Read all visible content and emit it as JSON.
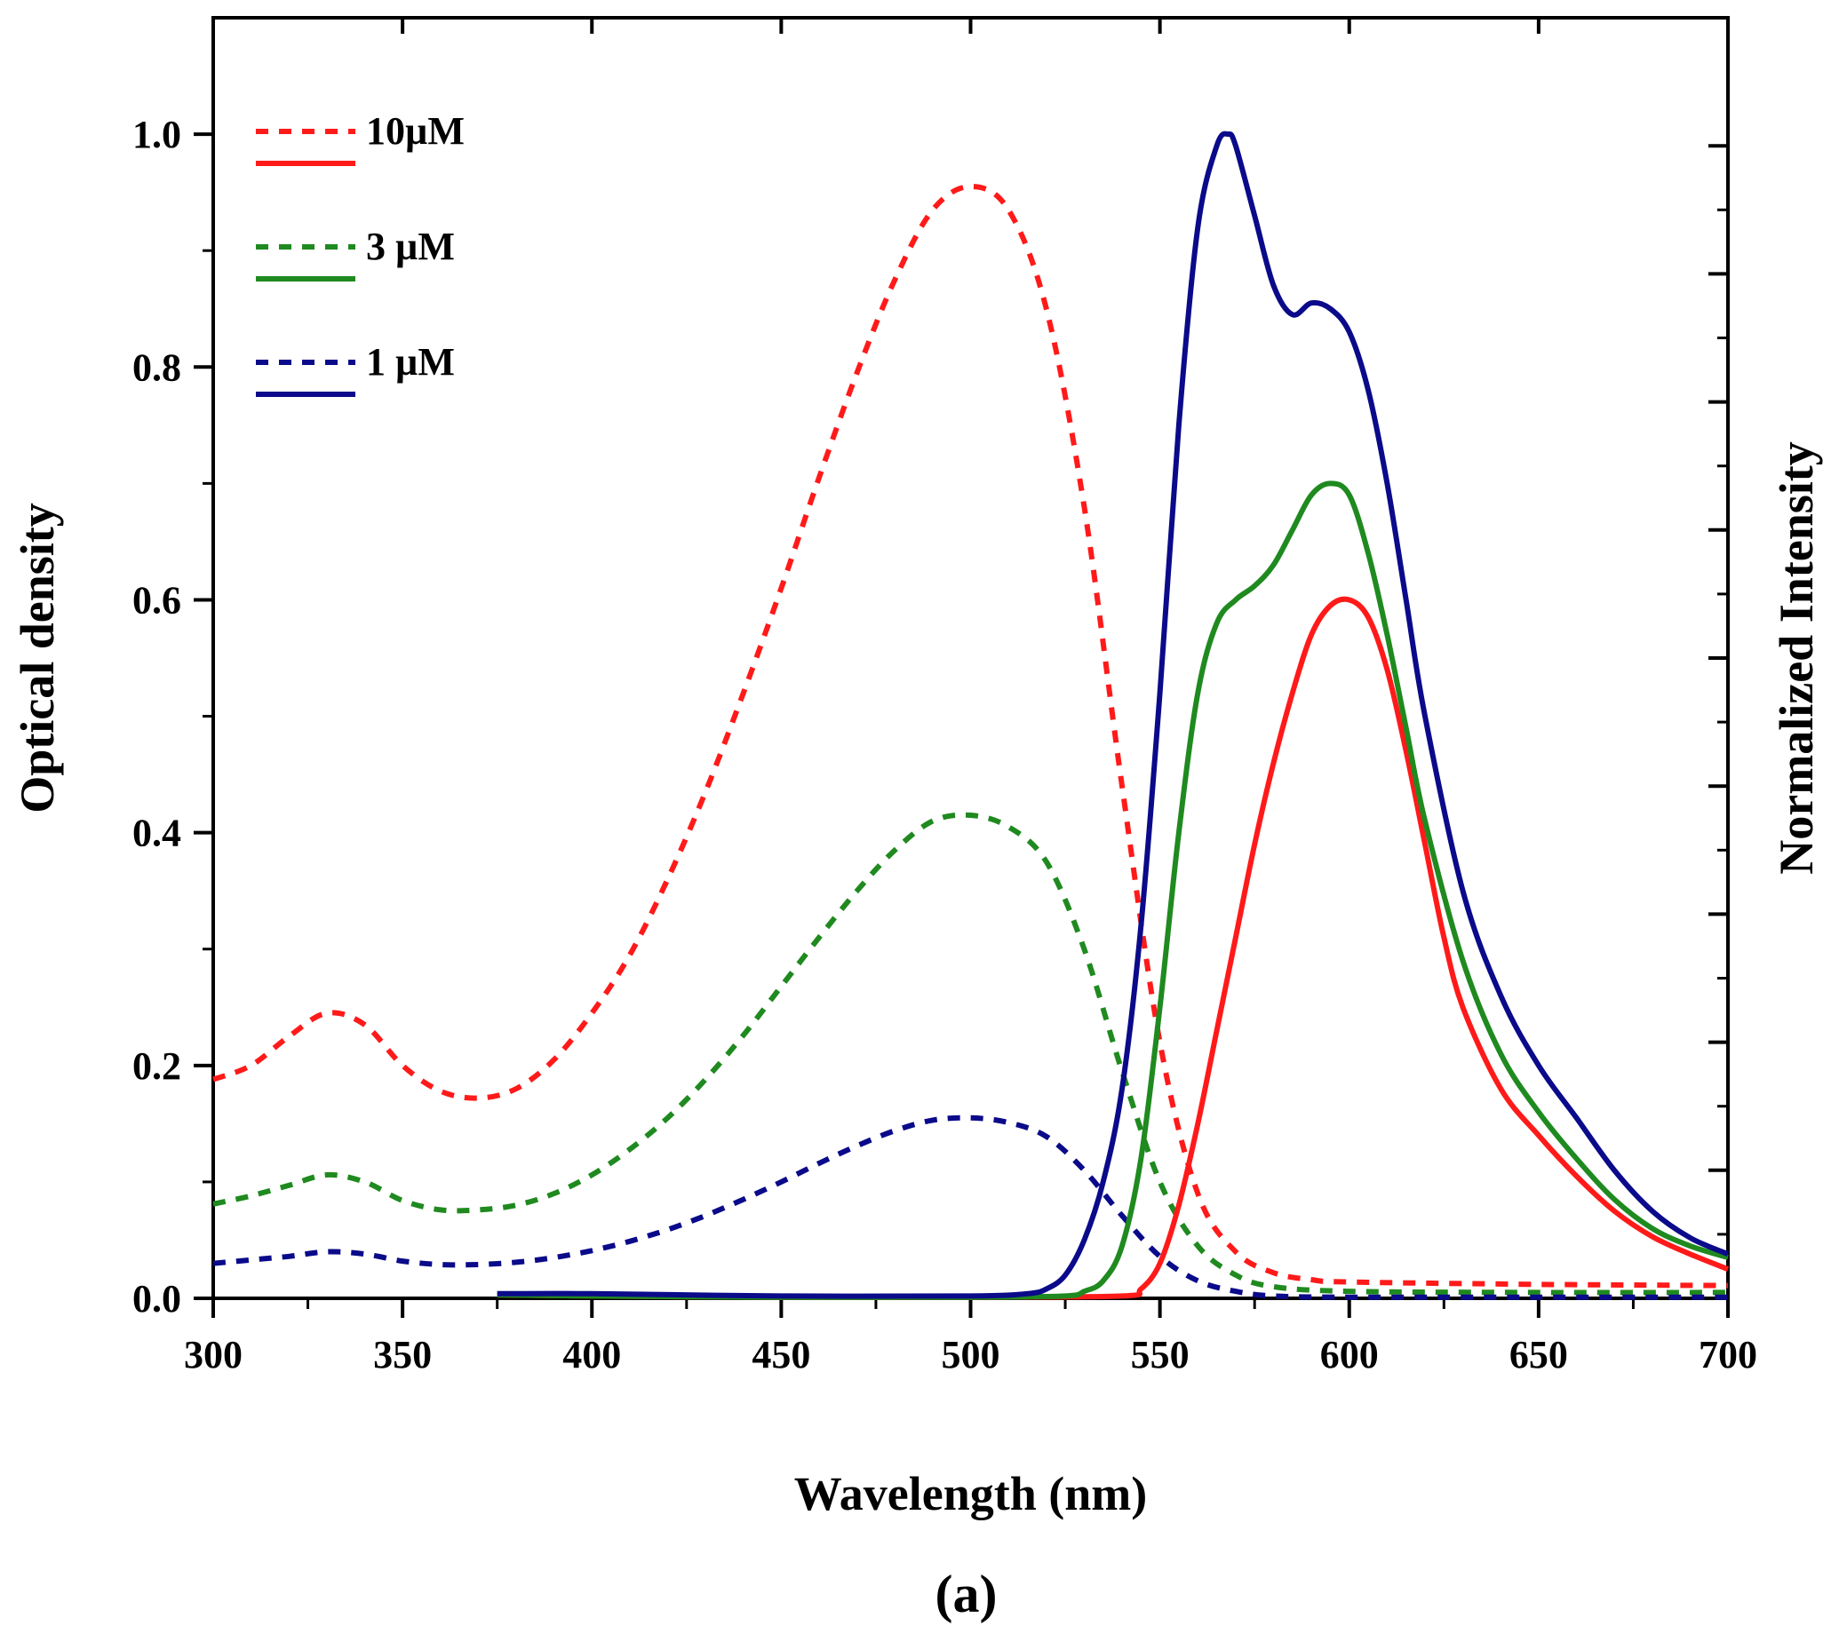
{
  "chart_data": {
    "type": "line",
    "title": "",
    "caption": "(a)",
    "xlabel": "Wavelength (nm)",
    "ylabel": "Optical density",
    "y2label": "Normalized Intensity",
    "xlim": [
      300,
      700
    ],
    "ylim": [
      0.0,
      1.1
    ],
    "x_ticks": [
      300,
      350,
      400,
      450,
      500,
      550,
      600,
      650,
      700
    ],
    "x_tick_labels": [
      "300",
      "350",
      "400",
      "450",
      "500",
      "550",
      "600",
      "650",
      "700"
    ],
    "y_ticks": [
      0.0,
      0.2,
      0.4,
      0.6,
      0.8,
      1.0
    ],
    "y_tick_labels": [
      "0.0",
      "0.2",
      "0.4",
      "0.6",
      "0.8",
      "1.0"
    ],
    "grid": false,
    "legend_position": "top-left",
    "legend": [
      {
        "label": "10µM",
        "color": "#ff1a1a"
      },
      {
        "label": "3 µM",
        "color": "#1f8a1f"
      },
      {
        "label": "1 µM",
        "color": "#0a0a8a"
      }
    ],
    "series": [
      {
        "name": "10µM absorption",
        "kind": "absorption",
        "style": "dashed",
        "color": "#ff1a1a",
        "x": [
          300,
          310,
          320,
          330,
          340,
          350,
          360,
          370,
          380,
          390,
          400,
          410,
          420,
          430,
          440,
          450,
          460,
          470,
          480,
          490,
          500,
          510,
          520,
          530,
          540,
          550,
          560,
          570,
          580,
          590,
          600,
          650,
          700
        ],
        "y": [
          0.188,
          0.2,
          0.225,
          0.245,
          0.235,
          0.2,
          0.178,
          0.172,
          0.18,
          0.205,
          0.245,
          0.295,
          0.36,
          0.435,
          0.52,
          0.61,
          0.705,
          0.795,
          0.875,
          0.935,
          0.955,
          0.935,
          0.85,
          0.68,
          0.44,
          0.22,
          0.09,
          0.04,
          0.022,
          0.016,
          0.014,
          0.012,
          0.011
        ]
      },
      {
        "name": "3 µM absorption",
        "kind": "absorption",
        "style": "dashed",
        "color": "#1f8a1f",
        "x": [
          300,
          310,
          320,
          330,
          340,
          350,
          360,
          370,
          380,
          390,
          400,
          410,
          420,
          430,
          440,
          450,
          460,
          470,
          480,
          490,
          500,
          510,
          520,
          530,
          540,
          550,
          560,
          570,
          580,
          600,
          650,
          700
        ],
        "y": [
          0.081,
          0.088,
          0.097,
          0.106,
          0.1,
          0.084,
          0.076,
          0.076,
          0.08,
          0.09,
          0.106,
          0.128,
          0.155,
          0.188,
          0.226,
          0.268,
          0.31,
          0.35,
          0.385,
          0.41,
          0.415,
          0.405,
          0.375,
          0.3,
          0.195,
          0.1,
          0.045,
          0.02,
          0.01,
          0.006,
          0.005,
          0.005
        ]
      },
      {
        "name": "1 µM absorption",
        "kind": "absorption",
        "style": "dashed",
        "color": "#0a0a8a",
        "x": [
          300,
          310,
          320,
          330,
          340,
          350,
          360,
          370,
          380,
          390,
          400,
          410,
          420,
          430,
          440,
          450,
          460,
          470,
          480,
          490,
          500,
          510,
          520,
          530,
          540,
          550,
          560,
          570,
          580,
          600,
          650,
          700
        ],
        "y": [
          0.03,
          0.033,
          0.036,
          0.04,
          0.038,
          0.032,
          0.029,
          0.029,
          0.031,
          0.035,
          0.041,
          0.049,
          0.059,
          0.071,
          0.085,
          0.1,
          0.116,
          0.131,
          0.144,
          0.153,
          0.155,
          0.151,
          0.139,
          0.11,
          0.071,
          0.036,
          0.015,
          0.006,
          0.002,
          0.001,
          0.001,
          0.001
        ]
      },
      {
        "name": "10µM emission",
        "kind": "emission",
        "style": "solid",
        "color": "#ff1a1a",
        "x": [
          375,
          400,
          450,
          500,
          540,
          545,
          550,
          555,
          560,
          565,
          570,
          575,
          580,
          585,
          590,
          595,
          600,
          605,
          610,
          615,
          620,
          625,
          630,
          640,
          650,
          660,
          670,
          680,
          690,
          700
        ],
        "y": [
          0.003,
          0.002,
          0.001,
          0.001,
          0.002,
          0.008,
          0.03,
          0.08,
          0.15,
          0.23,
          0.31,
          0.39,
          0.46,
          0.52,
          0.57,
          0.595,
          0.6,
          0.585,
          0.54,
          0.47,
          0.39,
          0.31,
          0.25,
          0.18,
          0.14,
          0.105,
          0.075,
          0.053,
          0.038,
          0.025
        ]
      },
      {
        "name": "3 µM emission",
        "kind": "emission",
        "style": "solid",
        "color": "#1f8a1f",
        "x": [
          375,
          400,
          450,
          500,
          525,
          530,
          535,
          540,
          545,
          550,
          555,
          560,
          565,
          570,
          575,
          580,
          585,
          590,
          595,
          600,
          605,
          610,
          615,
          620,
          630,
          640,
          650,
          660,
          670,
          680,
          690,
          700
        ],
        "y": [
          0.003,
          0.002,
          0.001,
          0.001,
          0.002,
          0.006,
          0.015,
          0.045,
          0.12,
          0.25,
          0.4,
          0.52,
          0.58,
          0.6,
          0.612,
          0.63,
          0.66,
          0.69,
          0.7,
          0.69,
          0.64,
          0.57,
          0.49,
          0.41,
          0.29,
          0.21,
          0.16,
          0.12,
          0.085,
          0.06,
          0.045,
          0.035
        ]
      },
      {
        "name": "1 µM emission",
        "kind": "emission",
        "style": "solid",
        "color": "#0a0a8a",
        "x": [
          375,
          400,
          450,
          500,
          515,
          520,
          525,
          530,
          535,
          540,
          545,
          550,
          555,
          560,
          565,
          568,
          570,
          575,
          580,
          585,
          590,
          595,
          600,
          605,
          610,
          615,
          620,
          630,
          640,
          650,
          660,
          670,
          680,
          690,
          700
        ],
        "y": [
          0.004,
          0.004,
          0.002,
          0.002,
          0.004,
          0.008,
          0.02,
          0.05,
          0.1,
          0.18,
          0.32,
          0.52,
          0.75,
          0.92,
          0.99,
          1.0,
          0.99,
          0.93,
          0.87,
          0.845,
          0.855,
          0.85,
          0.83,
          0.78,
          0.7,
          0.6,
          0.5,
          0.35,
          0.26,
          0.2,
          0.155,
          0.11,
          0.075,
          0.052,
          0.038
        ]
      }
    ]
  }
}
